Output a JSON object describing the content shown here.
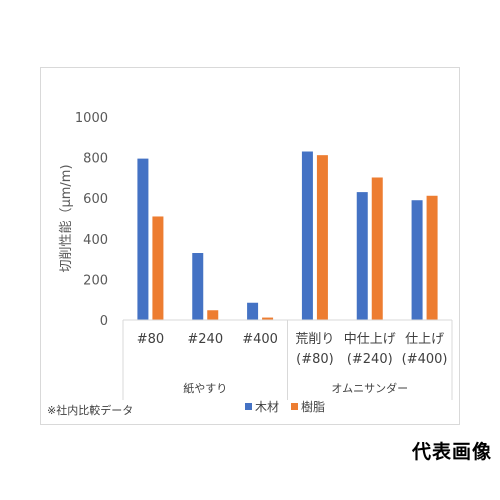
{
  "chart_data": {
    "type": "bar",
    "ylabel": "切削性能（μm/m)",
    "ylim": [
      0,
      1000
    ],
    "yticks": [
      0,
      200,
      400,
      600,
      800,
      1000
    ],
    "categories": [
      {
        "lines": [
          "#80"
        ],
        "group": "紙やすり"
      },
      {
        "lines": [
          "#240"
        ],
        "group": "紙やすり"
      },
      {
        "lines": [
          "#400"
        ],
        "group": "紙やすり"
      },
      {
        "lines": [
          "荒削り",
          "(#80)"
        ],
        "group": "オムニサンダー"
      },
      {
        "lines": [
          "中仕上げ",
          "(#240)"
        ],
        "group": "オムニサンダー"
      },
      {
        "lines": [
          "仕上げ",
          "(#400)"
        ],
        "group": "オムニサンダー"
      }
    ],
    "groups": [
      "紙やすり",
      "オムニサンダー"
    ],
    "series": [
      {
        "name": "木材",
        "color": "#4472c4",
        "values": [
          795,
          330,
          85,
          830,
          630,
          590
        ]
      },
      {
        "name": "樹脂",
        "color": "#ed7d31",
        "values": [
          510,
          48,
          12,
          812,
          702,
          612
        ]
      }
    ],
    "legend_position": "bottom",
    "grid": false
  },
  "note": "※社内比較データ",
  "representative_label": "代表画像"
}
